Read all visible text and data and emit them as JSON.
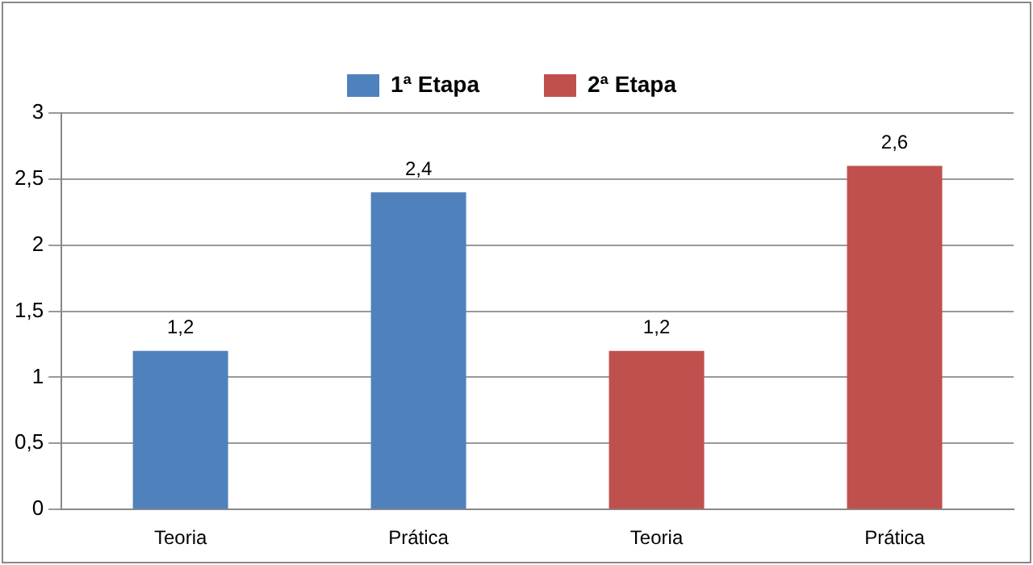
{
  "chart_data": {
    "type": "bar",
    "categories": [
      "Teoria",
      "Prática",
      "Teoria",
      "Prática"
    ],
    "series": [
      {
        "name": "1ª Etapa",
        "color": "#4f81bd",
        "values": [
          1.2,
          2.4,
          null,
          null
        ],
        "value_labels": [
          "1,2",
          "2,4",
          null,
          null
        ]
      },
      {
        "name": "2ª Etapa",
        "color": "#c0504d",
        "values": [
          null,
          null,
          1.2,
          2.6
        ],
        "value_labels": [
          null,
          null,
          "1,2",
          "2,6"
        ]
      }
    ],
    "ylim": [
      0,
      3
    ],
    "yticks": [
      0,
      {
        "value": 0.5,
        "label": "0,5"
      },
      1,
      {
        "value": 1.5,
        "label": "1,5"
      },
      2,
      {
        "value": 2.5,
        "label": "2,5"
      },
      3
    ],
    "grid": "y",
    "legend": "top"
  }
}
